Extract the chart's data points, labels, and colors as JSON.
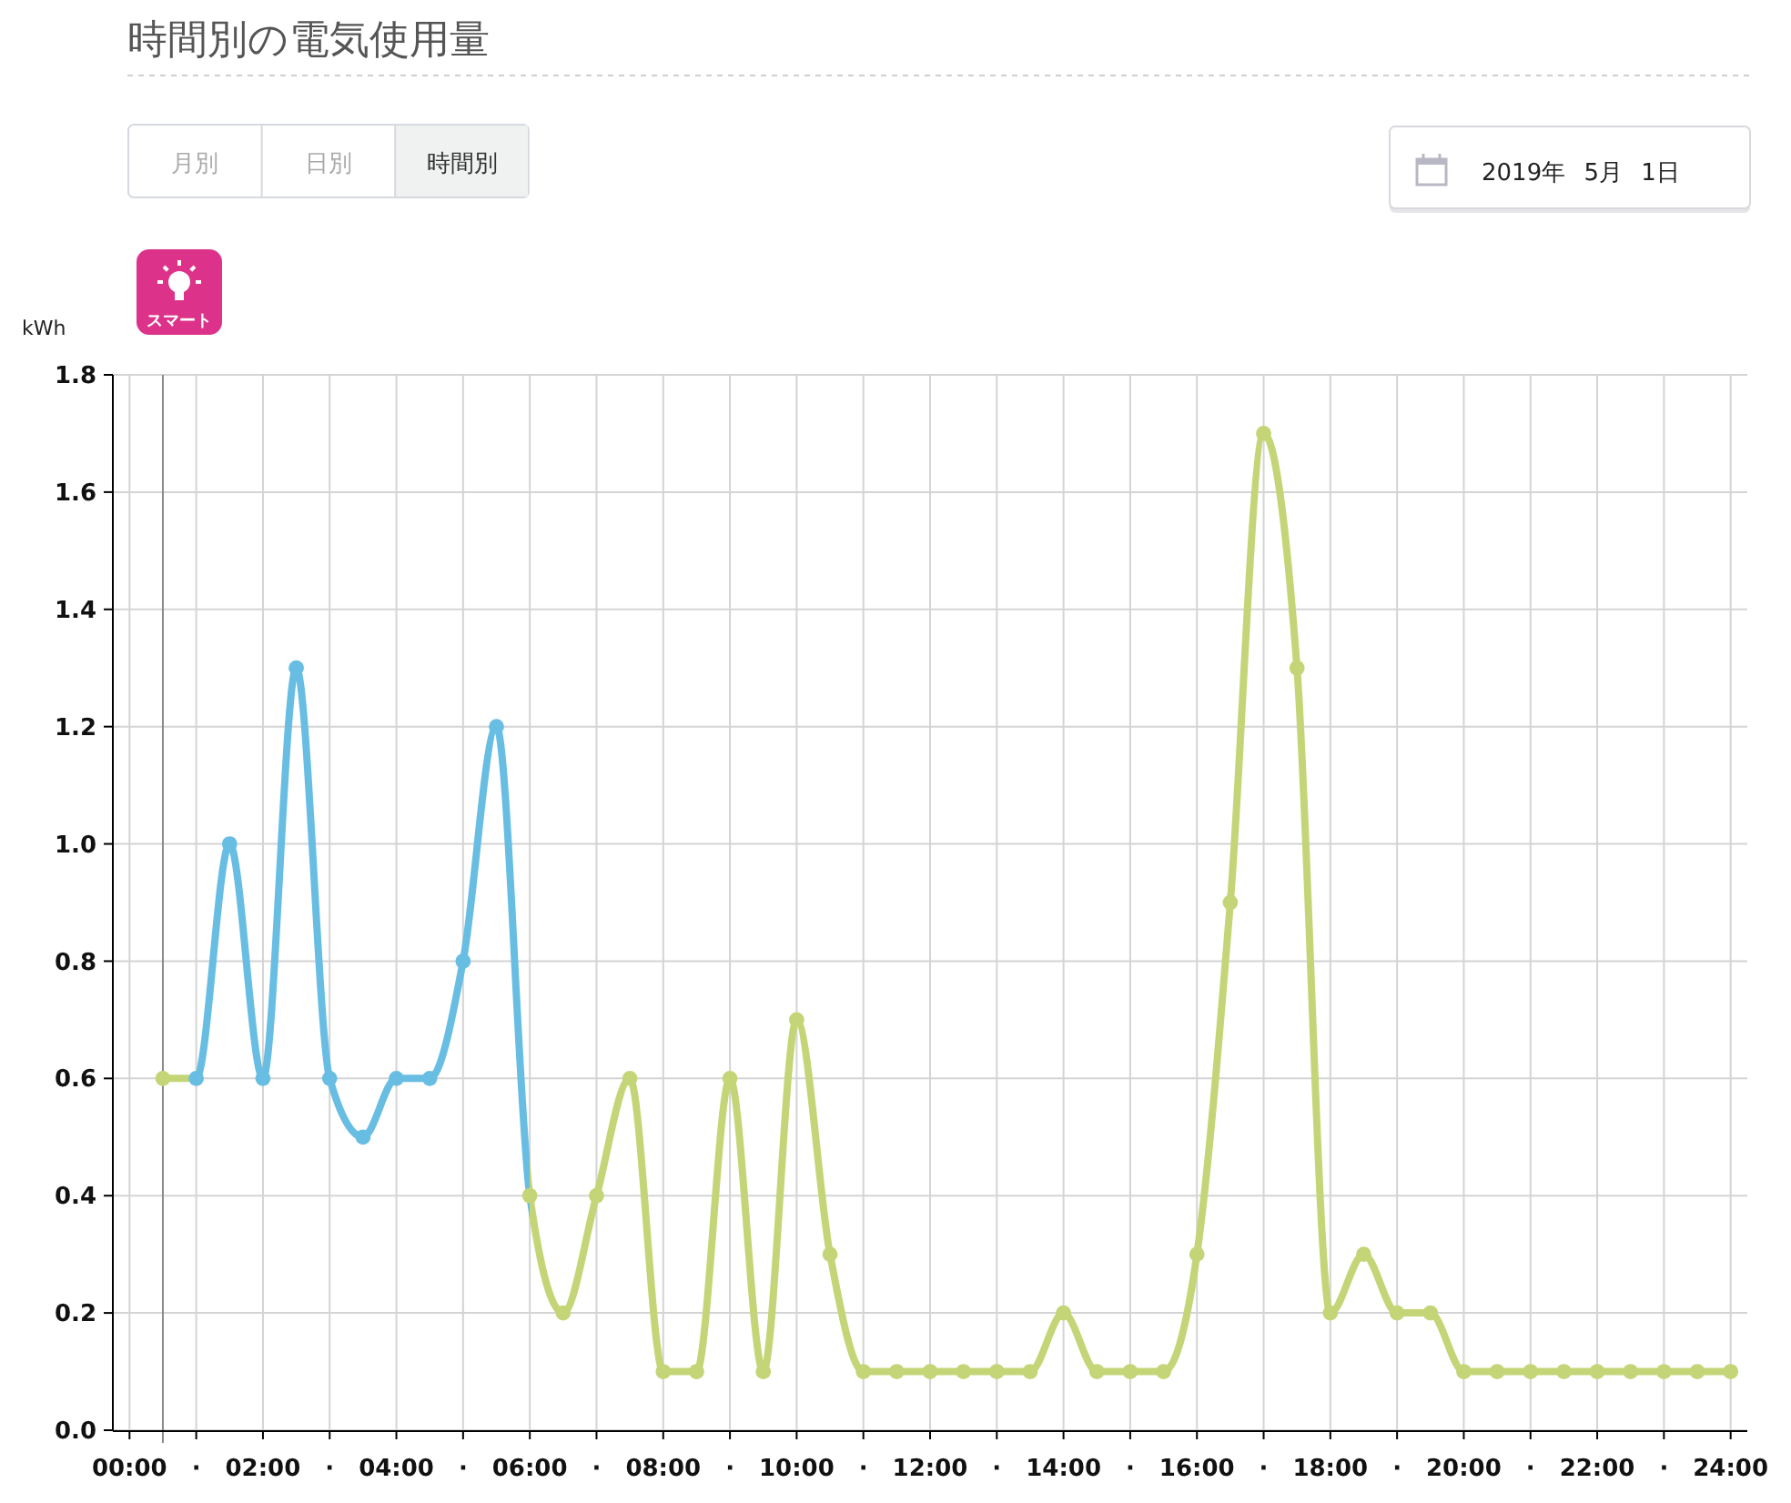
{
  "chart_data": {
    "type": "line",
    "title": "時間別の電気使用量",
    "ylabel": "kWh",
    "annotations": [
      "月別",
      "日別",
      "時間別",
      "2019年 5月 1日",
      "スマート"
    ],
    "x": [
      0.5,
      1,
      1.5,
      2,
      2.5,
      3,
      3.5,
      4,
      4.5,
      5,
      5.5,
      6,
      6.5,
      7,
      7.5,
      8,
      8.5,
      9,
      9.5,
      10,
      10.5,
      11,
      11.5,
      12,
      12.5,
      13,
      13.5,
      14,
      14.5,
      15,
      15.5,
      16,
      16.5,
      17,
      17.5,
      18,
      18.5,
      19,
      19.5,
      20,
      20.5,
      21,
      21.5,
      22,
      22.5,
      23,
      23.5,
      24
    ],
    "series": [
      {
        "values": [
          0.6,
          0.6,
          1.0,
          0.6,
          1.3,
          0.6,
          0.5,
          0.6,
          0.6,
          0.8,
          1.2,
          0.4,
          0.2,
          0.4,
          0.6,
          0.1,
          0.1,
          0.6,
          0.1,
          0.7,
          0.3,
          0.1,
          0.1,
          0.1,
          0.1,
          0.1,
          0.1,
          0.2,
          0.1,
          0.1,
          0.1,
          0.3,
          0.9,
          1.7,
          1.3,
          0.2,
          0.3,
          0.2,
          0.2,
          0.1,
          0.1,
          0.1,
          0.1,
          0.1,
          0.1,
          0.1,
          0.1,
          0.1
        ],
        "colors": [
          "#c4d577",
          "#68bde3",
          "#68bde3",
          "#68bde3",
          "#68bde3",
          "#68bde3",
          "#68bde3",
          "#68bde3",
          "#68bde3",
          "#68bde3",
          "#68bde3",
          "#c4d577",
          "#c4d577",
          "#c4d577",
          "#c4d577",
          "#c4d577",
          "#c4d577",
          "#c4d577",
          "#c4d577",
          "#c4d577",
          "#c4d577",
          "#c4d577",
          "#c4d577",
          "#c4d577",
          "#c4d577",
          "#c4d577",
          "#c4d577",
          "#c4d577",
          "#c4d577",
          "#c4d577",
          "#c4d577",
          "#c4d577",
          "#c4d577",
          "#c4d577",
          "#c4d577",
          "#c4d577",
          "#c4d577",
          "#c4d577",
          "#c4d577",
          "#c4d577",
          "#c4d577",
          "#c4d577",
          "#c4d577",
          "#c4d577",
          "#c4d577",
          "#c4d577",
          "#c4d577",
          "#c4d577"
        ]
      }
    ],
    "xlim": [
      -0.25,
      24.25
    ],
    "xticks": [
      {
        "value": 0,
        "label": "00:00"
      },
      {
        "value": 1,
        "label": "·"
      },
      {
        "value": 2,
        "label": "02:00"
      },
      {
        "value": 3,
        "label": "·"
      },
      {
        "value": 4,
        "label": "04:00"
      },
      {
        "value": 5,
        "label": "·"
      },
      {
        "value": 6,
        "label": "06:00"
      },
      {
        "value": 7,
        "label": "·"
      },
      {
        "value": 8,
        "label": "08:00"
      },
      {
        "value": 9,
        "label": "·"
      },
      {
        "value": 10,
        "label": "10:00"
      },
      {
        "value": 11,
        "label": "·"
      },
      {
        "value": 12,
        "label": "12:00"
      },
      {
        "value": 13,
        "label": "·"
      },
      {
        "value": 14,
        "label": "14:00"
      },
      {
        "value": 15,
        "label": "·"
      },
      {
        "value": 16,
        "label": "16:00"
      },
      {
        "value": 17,
        "label": "·"
      },
      {
        "value": 18,
        "label": "18:00"
      },
      {
        "value": 19,
        "label": "·"
      },
      {
        "value": 20,
        "label": "20:00"
      },
      {
        "value": 21,
        "label": "·"
      },
      {
        "value": 22,
        "label": "22:00"
      },
      {
        "value": 23,
        "label": "·"
      },
      {
        "value": 24,
        "label": "24:00"
      }
    ],
    "ylim": [
      0,
      1.8
    ],
    "yticks": [
      {
        "value": 0,
        "label": "0.0"
      },
      0.2,
      0.4,
      0.6,
      0.8,
      {
        "value": 1,
        "label": "1.0"
      },
      1.2,
      1.4,
      1.6,
      1.8
    ],
    "grid": true,
    "marker": "circle",
    "ref_lines": [
      {
        "axis": "x",
        "value": 0.5,
        "color": "#8a8a8a"
      }
    ]
  }
}
